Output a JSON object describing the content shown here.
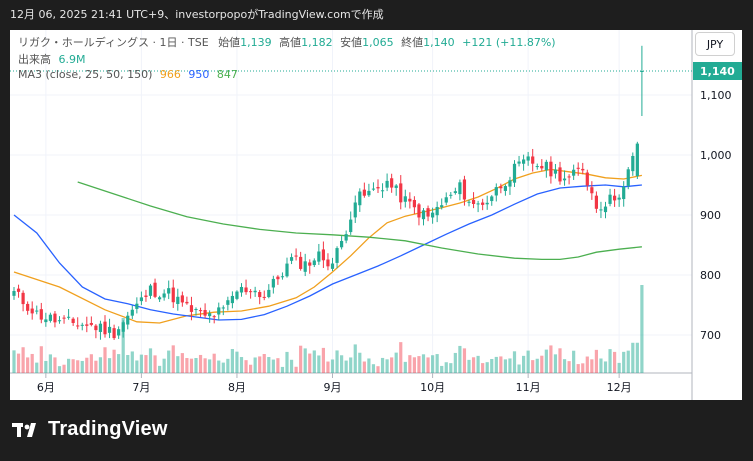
{
  "header": {
    "caption": "12月 06, 2025 21:41 UTC+9、investorpopoがTradingView.comで作成"
  },
  "legend": {
    "symbol_line": "リガク・ホールディングス · 1日 · TSE",
    "open_label": "始値",
    "open_value": "1,139",
    "high_label": "高値",
    "high_value": "1,182",
    "low_label": "安値",
    "low_value": "1,065",
    "close_label": "終値",
    "close_value": "1,140",
    "change": "+121 (+11.87%)",
    "volume_label": "出来高",
    "volume_value": "6.9M",
    "ma_label": "MA3 (close, 25, 50, 150)",
    "ma1_value": "966",
    "ma2_value": "950",
    "ma3_value": "847"
  },
  "currency_button": "JPY",
  "last_price_tag": "1,140",
  "brand": {
    "name": "TradingView",
    "logo": "tradingview-logo-icon"
  },
  "colors": {
    "up": "#22ab94",
    "down": "#f23645",
    "ma25": "#f0a01e",
    "ma50": "#2962ff",
    "ma150": "#4caf50"
  },
  "chart_data": {
    "type": "candlestick",
    "ylim": [
      650,
      1200
    ],
    "y_ticks": [
      700,
      800,
      900,
      1000,
      1100
    ],
    "y_tick_labels": [
      "700",
      "800",
      "900",
      "1,000",
      "1,100"
    ],
    "x_tick_labels": [
      "6月",
      "7月",
      "8月",
      "9月",
      "10月",
      "11月",
      "12月"
    ],
    "x_tick_index": [
      7,
      28,
      49,
      70,
      92,
      113,
      133
    ],
    "n_bars": 139,
    "anchors": [
      {
        "i": 0,
        "c": 770
      },
      {
        "i": 5,
        "c": 735
      },
      {
        "i": 10,
        "c": 722
      },
      {
        "i": 15,
        "c": 718
      },
      {
        "i": 19,
        "c": 712
      },
      {
        "i": 22,
        "c": 705
      },
      {
        "i": 26,
        "c": 740
      },
      {
        "i": 30,
        "c": 775
      },
      {
        "i": 34,
        "c": 770
      },
      {
        "i": 38,
        "c": 745
      },
      {
        "i": 42,
        "c": 730
      },
      {
        "i": 46,
        "c": 740
      },
      {
        "i": 49,
        "c": 773
      },
      {
        "i": 52,
        "c": 778
      },
      {
        "i": 55,
        "c": 765
      },
      {
        "i": 58,
        "c": 795
      },
      {
        "i": 61,
        "c": 825
      },
      {
        "i": 64,
        "c": 818
      },
      {
        "i": 67,
        "c": 832
      },
      {
        "i": 70,
        "c": 820
      },
      {
        "i": 72,
        "c": 855
      },
      {
        "i": 75,
        "c": 925
      },
      {
        "i": 79,
        "c": 940
      },
      {
        "i": 82,
        "c": 955
      },
      {
        "i": 85,
        "c": 930
      },
      {
        "i": 88,
        "c": 910
      },
      {
        "i": 91,
        "c": 895
      },
      {
        "i": 95,
        "c": 925
      },
      {
        "i": 98,
        "c": 945
      },
      {
        "i": 101,
        "c": 915
      },
      {
        "i": 104,
        "c": 925
      },
      {
        "i": 107,
        "c": 950
      },
      {
        "i": 110,
        "c": 975
      },
      {
        "i": 113,
        "c": 990
      },
      {
        "i": 116,
        "c": 982
      },
      {
        "i": 119,
        "c": 970
      },
      {
        "i": 122,
        "c": 960
      },
      {
        "i": 125,
        "c": 978
      },
      {
        "i": 128,
        "c": 915
      },
      {
        "i": 131,
        "c": 925
      },
      {
        "i": 134,
        "c": 945
      },
      {
        "i": 137,
        "c": 1019
      },
      {
        "i": 138,
        "c": 1140
      }
    ],
    "last_bar": {
      "open": 1139,
      "high": 1182,
      "low": 1065,
      "close": 1140,
      "volume": "6.9M"
    },
    "moving_averages": [
      {
        "name": "MA 25",
        "color": "#f0a01e",
        "points": [
          [
            0,
            805
          ],
          [
            10,
            780
          ],
          [
            20,
            742
          ],
          [
            27,
            722
          ],
          [
            32,
            720
          ],
          [
            38,
            732
          ],
          [
            44,
            738
          ],
          [
            50,
            740
          ],
          [
            56,
            748
          ],
          [
            62,
            762
          ],
          [
            66,
            780
          ],
          [
            70,
            805
          ],
          [
            74,
            832
          ],
          [
            78,
            862
          ],
          [
            82,
            887
          ],
          [
            86,
            898
          ],
          [
            90,
            905
          ],
          [
            94,
            912
          ],
          [
            98,
            920
          ],
          [
            102,
            930
          ],
          [
            106,
            944
          ],
          [
            110,
            960
          ],
          [
            114,
            970
          ],
          [
            118,
            976
          ],
          [
            122,
            972
          ],
          [
            126,
            968
          ],
          [
            130,
            962
          ],
          [
            134,
            960
          ],
          [
            138,
            966
          ]
        ]
      },
      {
        "name": "MA 50",
        "color": "#2962ff",
        "points": [
          [
            0,
            900
          ],
          [
            5,
            870
          ],
          [
            10,
            820
          ],
          [
            15,
            780
          ],
          [
            20,
            760
          ],
          [
            25,
            752
          ],
          [
            30,
            742
          ],
          [
            35,
            735
          ],
          [
            40,
            730
          ],
          [
            45,
            725
          ],
          [
            50,
            726
          ],
          [
            55,
            734
          ],
          [
            60,
            748
          ],
          [
            65,
            765
          ],
          [
            70,
            785
          ],
          [
            75,
            800
          ],
          [
            80,
            815
          ],
          [
            85,
            832
          ],
          [
            90,
            850
          ],
          [
            95,
            868
          ],
          [
            100,
            885
          ],
          [
            105,
            900
          ],
          [
            110,
            918
          ],
          [
            115,
            935
          ],
          [
            120,
            945
          ],
          [
            125,
            948
          ],
          [
            130,
            950
          ],
          [
            134,
            947
          ],
          [
            138,
            950
          ]
        ]
      },
      {
        "name": "MA 150",
        "color": "#4caf50",
        "points": [
          [
            14,
            955
          ],
          [
            22,
            935
          ],
          [
            30,
            915
          ],
          [
            38,
            897
          ],
          [
            46,
            885
          ],
          [
            54,
            876
          ],
          [
            62,
            870
          ],
          [
            70,
            867
          ],
          [
            78,
            863
          ],
          [
            86,
            857
          ],
          [
            94,
            845
          ],
          [
            102,
            835
          ],
          [
            110,
            828
          ],
          [
            116,
            826
          ],
          [
            120,
            826
          ],
          [
            124,
            830
          ],
          [
            128,
            838
          ],
          [
            133,
            843
          ],
          [
            138,
            847
          ]
        ]
      }
    ]
  }
}
